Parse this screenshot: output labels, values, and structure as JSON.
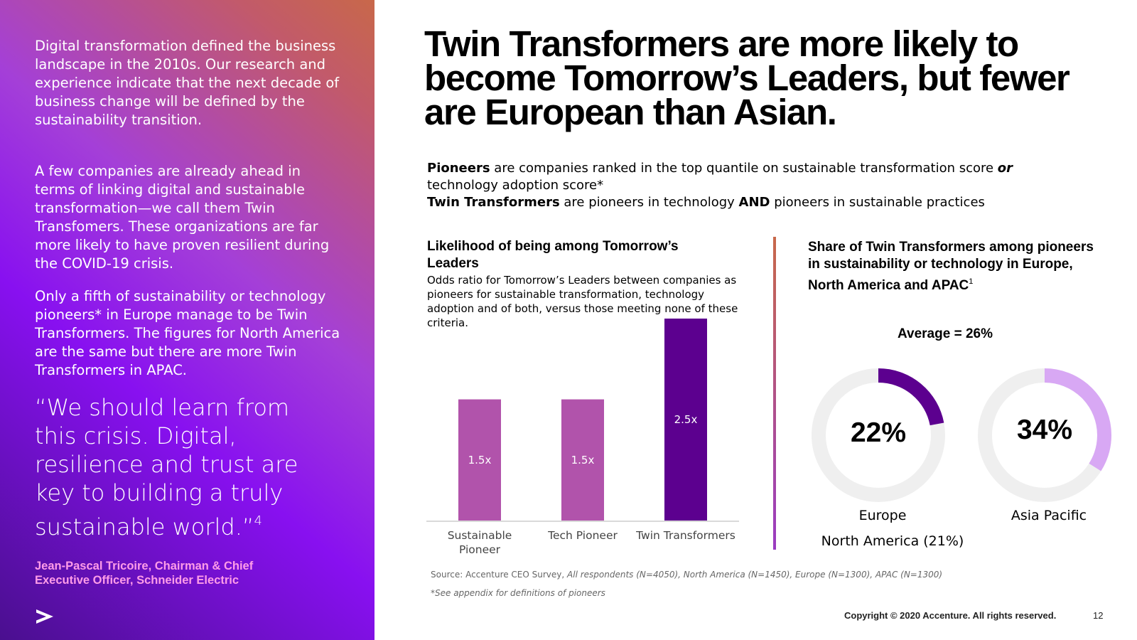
{
  "colors": {
    "panel_quote_author": "#ff9ce8",
    "bar_pioneer": "#b153ab",
    "bar_twin": "#5c008f",
    "donut_track": "#efefef",
    "donut_europe": "#5c008f",
    "donut_apac": "#d8a8f4"
  },
  "left": {
    "intro_1": "Digital transformation defined the business landscape in the 2010s. Our research and experience indicate that the next decade of business change will be defined by the sustainability transition.",
    "intro_2": "A few companies are already ahead in terms of linking digital and sustainable transformation—we call them Twin Transfomers. These organizations are far more likely to have proven resilient during the COVID-19 crisis.",
    "intro_3": "Only a fifth of sustainability or technology pioneers* in Europe manage to be Twin Transformers. The figures for North America are the same but there are more Twin Transformers in APAC.",
    "quote": "“We should learn from this crisis. Digital, resilience and trust are key to building a truly sustainable world.”",
    "quote_ref": "4",
    "quote_author": "Jean-Pascal Tricoire, Chairman & Chief Executive Officer, Schneider Electric",
    "logo_icon": "accenture-chevron-icon"
  },
  "headline": "Twin Transformers are more likely to become Tomorrow’s Leaders, but fewer are European than Asian.",
  "definitions": {
    "pioneers_term": "Pioneers",
    "pioneers_text_a": " are companies ranked in the top quantile on sustainable transformation score ",
    "pioneers_or": "or",
    "pioneers_text_b": " technology adoption score*",
    "twin_term": "Twin Transformers",
    "twin_text_a": " are pioneers in technology ",
    "twin_and": "AND",
    "twin_text_b": " pioneers in sustainable practices"
  },
  "chart_data": [
    {
      "type": "bar",
      "title": "Likelihood of being among Tomorrow’s Leaders",
      "subtitle": "Odds ratio for Tomorrow’s Leaders between companies as pioneers for sustainable transformation, technology adoption and of both, versus those meeting none of these criteria.",
      "categories": [
        "Sustainable Pioneer",
        "Tech Pioneer",
        "Twin Transformers"
      ],
      "values": [
        1.5,
        1.5,
        2.5
      ],
      "data_labels": [
        "1.5x",
        "1.5x",
        "2.5x"
      ],
      "ylim": [
        0,
        2.5
      ],
      "grid": false
    },
    {
      "type": "pie",
      "title": "Share of Twin Transformers among pioneers in sustainability or technology in Europe, North America and APAC",
      "title_ref": "1",
      "average_label": "Average = 26%",
      "series": [
        {
          "name": "Europe",
          "value": 22,
          "label": "22%"
        },
        {
          "name": "Asia Pacific",
          "value": 34,
          "label": "34%"
        }
      ],
      "extra_label": "North America (21%)"
    }
  ],
  "source": {
    "prefix": "Source: Accenture CEO Survey, ",
    "detail": "All respondents (N=4050), North America (N=1450), Europe (N=1300), APAC (N=1300)"
  },
  "footnote": "*See appendix for definitions of pioneers",
  "footer": {
    "copyright": "Copyright © 2020 Accenture. All rights reserved.",
    "page_number": "12"
  }
}
